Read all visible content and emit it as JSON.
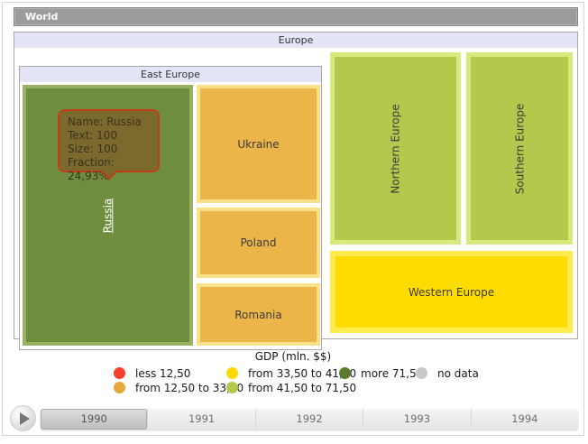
{
  "window": {
    "breadcrumb_label": "World"
  },
  "treemap": {
    "root_label": "Europe",
    "east_group_label": "East Europe",
    "tiles": {
      "russia": {
        "label": "Russia",
        "fill": "#6e8d3f",
        "border": "#9ab163"
      },
      "ukraine": {
        "label": "Ukraine",
        "fill": "#ebb54a",
        "border": "#f9e18b"
      },
      "poland": {
        "label": "Poland",
        "fill": "#ebb54a",
        "border": "#f9e18b"
      },
      "romania": {
        "label": "Romania",
        "fill": "#ebb54a",
        "border": "#f9e18b"
      },
      "northern": {
        "label": "Northern Europe",
        "fill": "#b4c84d",
        "border": "#d6ea7e"
      },
      "southern": {
        "label": "Southern Europe",
        "fill": "#b4c84d",
        "border": "#d6ea7e"
      },
      "western": {
        "label": "Western Europe",
        "fill": "#ffdc00",
        "border": "#fdeb4f"
      }
    }
  },
  "tooltip": {
    "lines": [
      "Name: Russia",
      "Text: 100",
      "Size: 100",
      "Fraction: 24,93%"
    ],
    "bg": "#7b692e",
    "border": "#c13b17"
  },
  "legend": {
    "title": "GDP (mln. $$)",
    "items": [
      {
        "label": "less 12,50",
        "color": "#f4402c"
      },
      {
        "label": "from 12,50 to 33,50",
        "color": "#e5a83d"
      },
      {
        "label": "from 33,50 to 41,50",
        "color": "#ffd800"
      },
      {
        "label": "from 41,50 to 71,50",
        "color": "#b3c94d"
      },
      {
        "label": "more 71,50",
        "color": "#5c7a2e"
      },
      {
        "label": "no data",
        "color": "#c8c8c8"
      }
    ]
  },
  "timeline": {
    "years": [
      "1990",
      "1991",
      "1992",
      "1993",
      "1994"
    ],
    "selected_year": "1990",
    "play_icon": "play-icon"
  },
  "chart_data": {
    "type": "treemap",
    "title": "GDP (mln. $$)",
    "breadcrumb": "World",
    "root": "Europe",
    "year_shown": "1990",
    "years": [
      "1990",
      "1991",
      "1992",
      "1993",
      "1994"
    ],
    "hierarchy": {
      "name": "Europe",
      "children": [
        {
          "name": "East Europe",
          "children": [
            {
              "name": "Russia",
              "text": 100,
              "size": 100,
              "fraction_pct": 24.93,
              "bin": "more 71,50",
              "tooltip_shown": true
            },
            {
              "name": "Ukraine",
              "bin": "from 12,50 to 33,50"
            },
            {
              "name": "Poland",
              "bin": "from 12,50 to 33,50"
            },
            {
              "name": "Romania",
              "bin": "from 12,50 to 33,50"
            }
          ]
        },
        {
          "name": "Northern Europe",
          "bin": "from 41,50 to 71,50"
        },
        {
          "name": "Southern Europe",
          "bin": "from 41,50 to 71,50"
        },
        {
          "name": "Western Europe",
          "bin": "from 33,50 to 41,50"
        }
      ]
    },
    "legend_bins": [
      {
        "label": "less 12,50",
        "color": "#f4402c"
      },
      {
        "label": "from 12,50 to 33,50",
        "color": "#e5a83d"
      },
      {
        "label": "from 33,50 to 41,50",
        "color": "#ffd800"
      },
      {
        "label": "from 41,50 to 71,50",
        "color": "#b3c94d"
      },
      {
        "label": "more 71,50",
        "color": "#5c7a2e"
      },
      {
        "label": "no data",
        "color": "#c8c8c8"
      }
    ],
    "legend_position": "bottom"
  }
}
